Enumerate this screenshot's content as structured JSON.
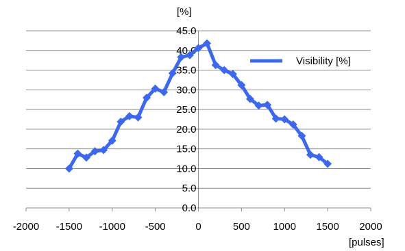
{
  "chart_data": {
    "type": "line",
    "title": "",
    "xlabel": "[pulses]",
    "ylabel": "[%]",
    "xlim": [
      -2000,
      2000
    ],
    "ylim": [
      0,
      45
    ],
    "x_ticks": [
      -2000,
      -1500,
      -1000,
      -500,
      0,
      500,
      1000,
      1500,
      2000
    ],
    "x_tick_labels": [
      "-2000",
      "-1500",
      "-1000",
      "-500",
      "0",
      "500",
      "1000",
      "1500",
      "2000"
    ],
    "y_ticks": [
      0,
      5,
      10,
      15,
      20,
      25,
      30,
      35,
      40,
      45
    ],
    "y_tick_labels": [
      "0.0",
      "5.0",
      "10.0",
      "15.0",
      "20.0",
      "25.0",
      "30.0",
      "35.0",
      "40.0",
      "45.0"
    ],
    "grid": "horizontal",
    "legend_position": "top-right",
    "series": [
      {
        "name": "Visibility [%]",
        "color": "#3a68f5",
        "marker": "diamond",
        "x": [
          -1500,
          -1400,
          -1300,
          -1200,
          -1100,
          -1000,
          -900,
          -800,
          -700,
          -600,
          -500,
          -400,
          -300,
          -200,
          -100,
          0,
          100,
          200,
          300,
          400,
          500,
          600,
          700,
          800,
          900,
          1000,
          1100,
          1200,
          1300,
          1400,
          1500
        ],
        "y": [
          10.0,
          13.8,
          12.8,
          14.4,
          14.7,
          17.1,
          21.9,
          23.3,
          23.0,
          28.0,
          30.3,
          29.4,
          34.2,
          38.3,
          38.8,
          40.6,
          41.8,
          36.3,
          35.0,
          34.0,
          31.2,
          27.7,
          26.0,
          26.2,
          22.7,
          22.5,
          21.2,
          18.3,
          13.5,
          12.9,
          11.2
        ]
      }
    ]
  }
}
